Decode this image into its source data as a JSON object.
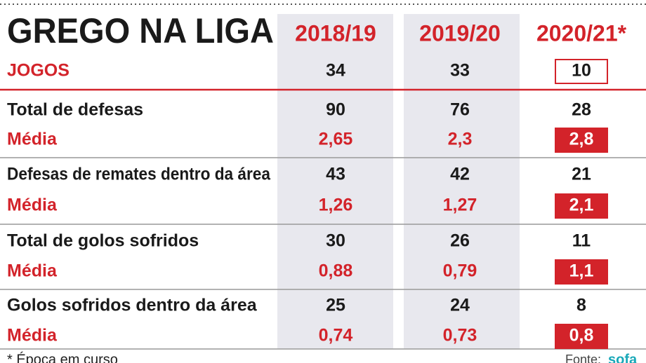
{
  "title": "GREGO NA LIGA",
  "columns": [
    "2018/19",
    "2019/20",
    "2020/21*"
  ],
  "rows": [
    {
      "label": "JOGOS",
      "cells": [
        "34",
        "33",
        "10"
      ]
    },
    {
      "label": "Total de defesas",
      "cells": [
        "90",
        "76",
        "28"
      ]
    },
    {
      "label": "Média",
      "cells": [
        "2,65",
        "2,3",
        "2,8"
      ]
    },
    {
      "label": "Defesas de remates dentro da área",
      "cells": [
        "43",
        "42",
        "21"
      ]
    },
    {
      "label": "Média",
      "cells": [
        "1,26",
        "1,27",
        "2,1"
      ]
    },
    {
      "label": "Total de golos sofridos",
      "cells": [
        "30",
        "26",
        "11"
      ]
    },
    {
      "label": "Média",
      "cells": [
        "0,88",
        "0,79",
        "1,1"
      ]
    },
    {
      "label": "Golos sofridos dentro da área",
      "cells": [
        "25",
        "24",
        "8"
      ]
    },
    {
      "label": "Média",
      "cells": [
        "0,74",
        "0,73",
        "0,8"
      ]
    }
  ],
  "footer": {
    "note": "* Época em curso",
    "source": "Fonte:",
    "brand": "sofa"
  }
}
